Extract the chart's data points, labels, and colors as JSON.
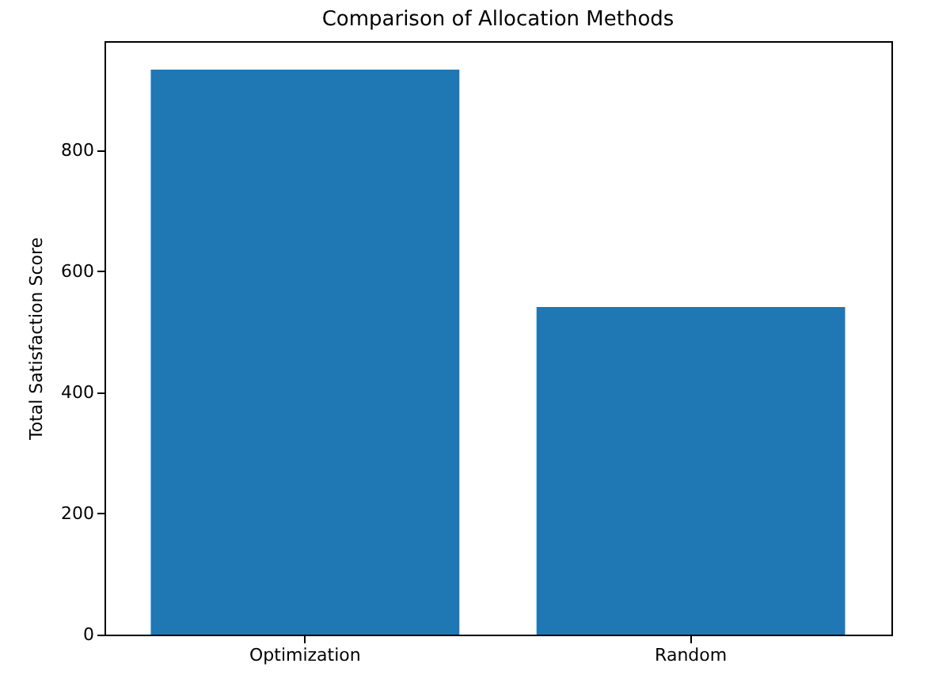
{
  "chart_data": {
    "type": "bar",
    "title": "Comparison of Allocation Methods",
    "ylabel": "Total Satisfaction Score",
    "categories": [
      "Optimization",
      "Random"
    ],
    "values": [
      933,
      541
    ],
    "color": "#1f77b4",
    "ylim": [
      0,
      980
    ],
    "yticks": [
      0,
      200,
      400,
      600,
      800
    ],
    "grid": false
  }
}
